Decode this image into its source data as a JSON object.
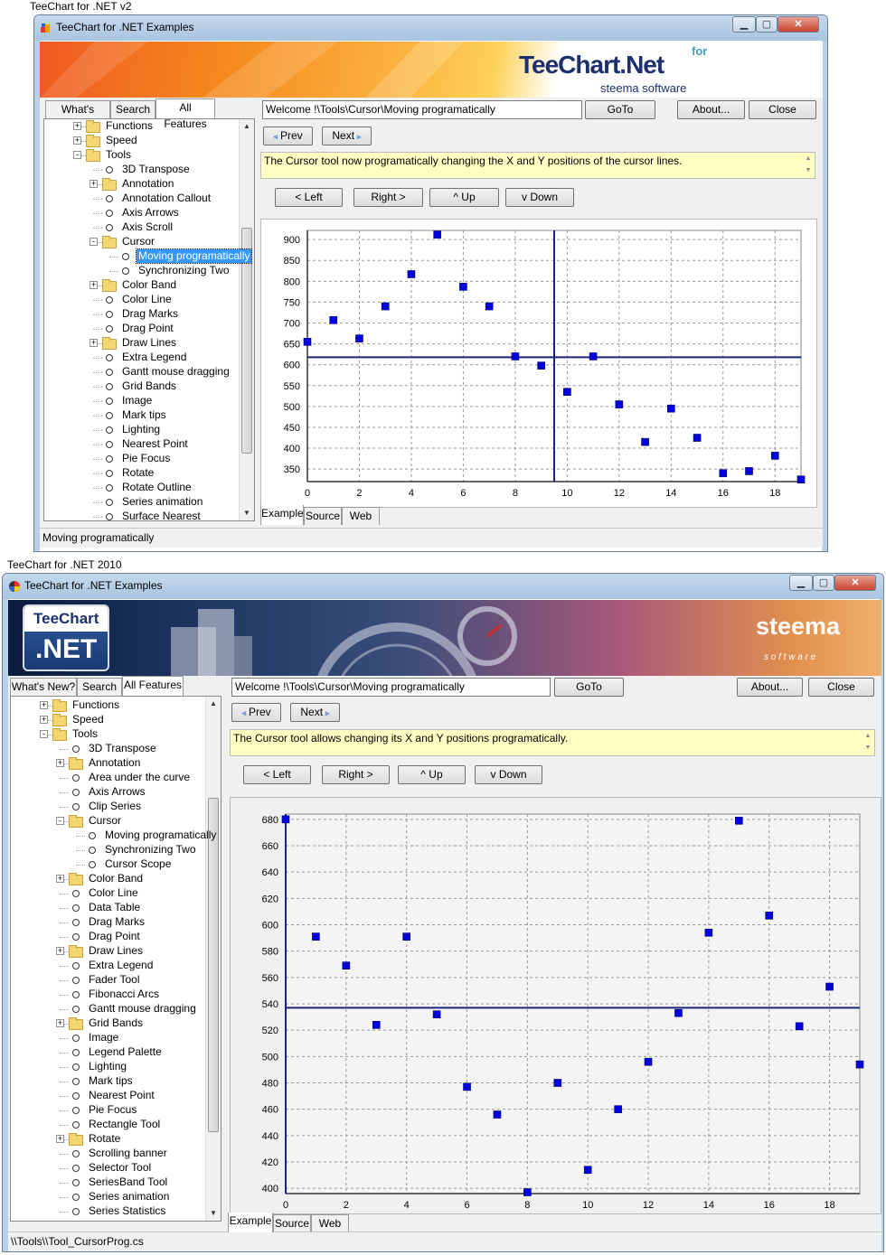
{
  "captions": {
    "v2": "TeeChart for .NET v2",
    "v2010": "TeeChart for .NET 2010"
  },
  "colors": {
    "point": "#0000e0",
    "cursor": "#1a237e",
    "desc_bg": "#ffffc4"
  },
  "w1": {
    "title": "TeeChart for .NET Examples",
    "logo_main": "TeeChart.Net",
    "logo_for": "for",
    "logo_sub": "steema software",
    "tabs": [
      "What's New?",
      "Search",
      "All Features"
    ],
    "tree": [
      {
        "label": "Functions",
        "depth": 1,
        "type": "folder",
        "exp": "+"
      },
      {
        "label": "Speed",
        "depth": 1,
        "type": "folder",
        "exp": "+"
      },
      {
        "label": "Tools",
        "depth": 1,
        "type": "folder",
        "exp": "-"
      },
      {
        "label": "3D Transpose",
        "depth": 2,
        "type": "leaf"
      },
      {
        "label": "Annotation",
        "depth": 2,
        "type": "folder",
        "exp": "+"
      },
      {
        "label": "Annotation Callout",
        "depth": 2,
        "type": "leaf"
      },
      {
        "label": "Axis Arrows",
        "depth": 2,
        "type": "leaf"
      },
      {
        "label": "Axis Scroll",
        "depth": 2,
        "type": "leaf"
      },
      {
        "label": "Cursor",
        "depth": 2,
        "type": "folder",
        "exp": "-"
      },
      {
        "label": "Moving programatically",
        "depth": 3,
        "type": "leaf",
        "selected": true
      },
      {
        "label": "Synchronizing Two",
        "depth": 3,
        "type": "leaf"
      },
      {
        "label": "Color Band",
        "depth": 2,
        "type": "folder",
        "exp": "+"
      },
      {
        "label": "Color Line",
        "depth": 2,
        "type": "leaf"
      },
      {
        "label": "Drag Marks",
        "depth": 2,
        "type": "leaf"
      },
      {
        "label": "Drag Point",
        "depth": 2,
        "type": "leaf"
      },
      {
        "label": "Draw Lines",
        "depth": 2,
        "type": "folder",
        "exp": "+"
      },
      {
        "label": "Extra Legend",
        "depth": 2,
        "type": "leaf"
      },
      {
        "label": "Gantt mouse dragging",
        "depth": 2,
        "type": "leaf"
      },
      {
        "label": "Grid Bands",
        "depth": 2,
        "type": "leaf"
      },
      {
        "label": "Image",
        "depth": 2,
        "type": "leaf"
      },
      {
        "label": "Mark tips",
        "depth": 2,
        "type": "leaf"
      },
      {
        "label": "Lighting",
        "depth": 2,
        "type": "leaf"
      },
      {
        "label": "Nearest Point",
        "depth": 2,
        "type": "leaf"
      },
      {
        "label": "Pie Focus",
        "depth": 2,
        "type": "leaf"
      },
      {
        "label": "Rotate",
        "depth": 2,
        "type": "leaf"
      },
      {
        "label": "Rotate Outline",
        "depth": 2,
        "type": "leaf"
      },
      {
        "label": "Series animation",
        "depth": 2,
        "type": "leaf"
      },
      {
        "label": "Surface Nearest",
        "depth": 2,
        "type": "leaf"
      }
    ],
    "path": "Welcome !\\Tools\\Cursor\\Moving programatically",
    "goto": "GoTo",
    "about": "About...",
    "close": "Close",
    "prev": "Prev",
    "next": "Next",
    "desc": "The Cursor tool now programatically changing the X and Y positions  of the cursor lines.",
    "dir": [
      "< Left",
      "Right >",
      "^ Up",
      "v Down"
    ],
    "bottom_tabs": [
      "Example",
      "Source",
      "Web"
    ],
    "status": "Moving programatically"
  },
  "w2": {
    "title": "TeeChart for .NET Examples",
    "logo_tee": "TeeChart",
    "logo_net": ".NET",
    "brand": "steema",
    "brand_sub": "s o f t w a r e",
    "tabs": [
      "What's New?",
      "Search",
      "All Features"
    ],
    "tree": [
      {
        "label": "Functions",
        "depth": 1,
        "type": "folder",
        "exp": "+"
      },
      {
        "label": "Speed",
        "depth": 1,
        "type": "folder",
        "exp": "+"
      },
      {
        "label": "Tools",
        "depth": 1,
        "type": "folder",
        "exp": "-"
      },
      {
        "label": "3D Transpose",
        "depth": 2,
        "type": "leaf"
      },
      {
        "label": "Annotation",
        "depth": 2,
        "type": "folder",
        "exp": "+"
      },
      {
        "label": "Area under the curve",
        "depth": 2,
        "type": "leaf"
      },
      {
        "label": "Axis Arrows",
        "depth": 2,
        "type": "leaf"
      },
      {
        "label": "Clip Series",
        "depth": 2,
        "type": "leaf"
      },
      {
        "label": "Cursor",
        "depth": 2,
        "type": "folder",
        "exp": "-"
      },
      {
        "label": "Moving programatically",
        "depth": 3,
        "type": "leaf"
      },
      {
        "label": "Synchronizing Two",
        "depth": 3,
        "type": "leaf"
      },
      {
        "label": "Cursor Scope",
        "depth": 3,
        "type": "leaf"
      },
      {
        "label": "Color Band",
        "depth": 2,
        "type": "folder",
        "exp": "+"
      },
      {
        "label": "Color Line",
        "depth": 2,
        "type": "leaf"
      },
      {
        "label": "Data Table",
        "depth": 2,
        "type": "leaf"
      },
      {
        "label": "Drag Marks",
        "depth": 2,
        "type": "leaf"
      },
      {
        "label": "Drag Point",
        "depth": 2,
        "type": "leaf"
      },
      {
        "label": "Draw Lines",
        "depth": 2,
        "type": "folder",
        "exp": "+"
      },
      {
        "label": "Extra Legend",
        "depth": 2,
        "type": "leaf"
      },
      {
        "label": "Fader Tool",
        "depth": 2,
        "type": "leaf"
      },
      {
        "label": "Fibonacci Arcs",
        "depth": 2,
        "type": "leaf"
      },
      {
        "label": "Gantt mouse dragging",
        "depth": 2,
        "type": "leaf"
      },
      {
        "label": "Grid Bands",
        "depth": 2,
        "type": "folder",
        "exp": "+"
      },
      {
        "label": "Image",
        "depth": 2,
        "type": "leaf"
      },
      {
        "label": "Legend Palette",
        "depth": 2,
        "type": "leaf"
      },
      {
        "label": "Lighting",
        "depth": 2,
        "type": "leaf"
      },
      {
        "label": "Mark tips",
        "depth": 2,
        "type": "leaf"
      },
      {
        "label": "Nearest Point",
        "depth": 2,
        "type": "leaf"
      },
      {
        "label": "Pie Focus",
        "depth": 2,
        "type": "leaf"
      },
      {
        "label": "Rectangle Tool",
        "depth": 2,
        "type": "leaf"
      },
      {
        "label": "Rotate",
        "depth": 2,
        "type": "folder",
        "exp": "+"
      },
      {
        "label": "Scrolling banner",
        "depth": 2,
        "type": "leaf"
      },
      {
        "label": "Selector Tool",
        "depth": 2,
        "type": "leaf"
      },
      {
        "label": "SeriesBand Tool",
        "depth": 2,
        "type": "leaf"
      },
      {
        "label": "Series animation",
        "depth": 2,
        "type": "leaf"
      },
      {
        "label": "Series Statistics",
        "depth": 2,
        "type": "leaf"
      }
    ],
    "path": "Welcome !\\Tools\\Cursor\\Moving programatically",
    "goto": "GoTo",
    "about": "About...",
    "close": "Close",
    "prev": "Prev",
    "next": "Next",
    "desc": "The Cursor tool allows changing its X and Y positions programatically.",
    "dir": [
      "< Left",
      "Right >",
      "^ Up",
      "v Down"
    ],
    "bottom_tabs": [
      "Example",
      "Source",
      "Web"
    ],
    "status": "\\\\Tools\\\\Tool_CursorProg.cs"
  },
  "chart_data": [
    {
      "type": "scatter",
      "x": [
        0,
        1,
        2,
        3,
        4,
        5,
        6,
        7,
        8,
        9,
        10,
        11,
        12,
        13,
        14,
        15,
        16,
        17,
        18,
        19
      ],
      "y": [
        655,
        707,
        663,
        740,
        817,
        912,
        787,
        740,
        620,
        598,
        535,
        620,
        505,
        415,
        495,
        425,
        340,
        345,
        382,
        325
      ],
      "xlim": [
        0,
        19
      ],
      "ylim": [
        320,
        922
      ],
      "xticks": [
        0,
        2,
        4,
        6,
        8,
        10,
        12,
        14,
        16,
        18
      ],
      "yticks": [
        350,
        400,
        450,
        500,
        550,
        600,
        650,
        700,
        750,
        800,
        850,
        900
      ],
      "cursor": {
        "x": 9.5,
        "y": 618
      },
      "grid": true
    },
    {
      "type": "scatter",
      "x": [
        0,
        1,
        2,
        3,
        4,
        5,
        6,
        7,
        8,
        9,
        10,
        11,
        12,
        13,
        14,
        15,
        16,
        17,
        18,
        19
      ],
      "y": [
        680,
        591,
        569,
        524,
        591,
        532,
        477,
        456,
        397,
        480,
        414,
        460,
        496,
        533,
        594,
        679,
        607,
        523,
        553,
        494
      ],
      "xlim": [
        0,
        19
      ],
      "ylim": [
        396,
        684
      ],
      "xticks": [
        0,
        2,
        4,
        6,
        8,
        10,
        12,
        14,
        16,
        18
      ],
      "yticks": [
        400,
        420,
        440,
        460,
        480,
        500,
        520,
        540,
        560,
        580,
        600,
        620,
        640,
        660,
        680
      ],
      "cursor": {
        "x": 0,
        "y": 537
      },
      "grid": true
    }
  ]
}
